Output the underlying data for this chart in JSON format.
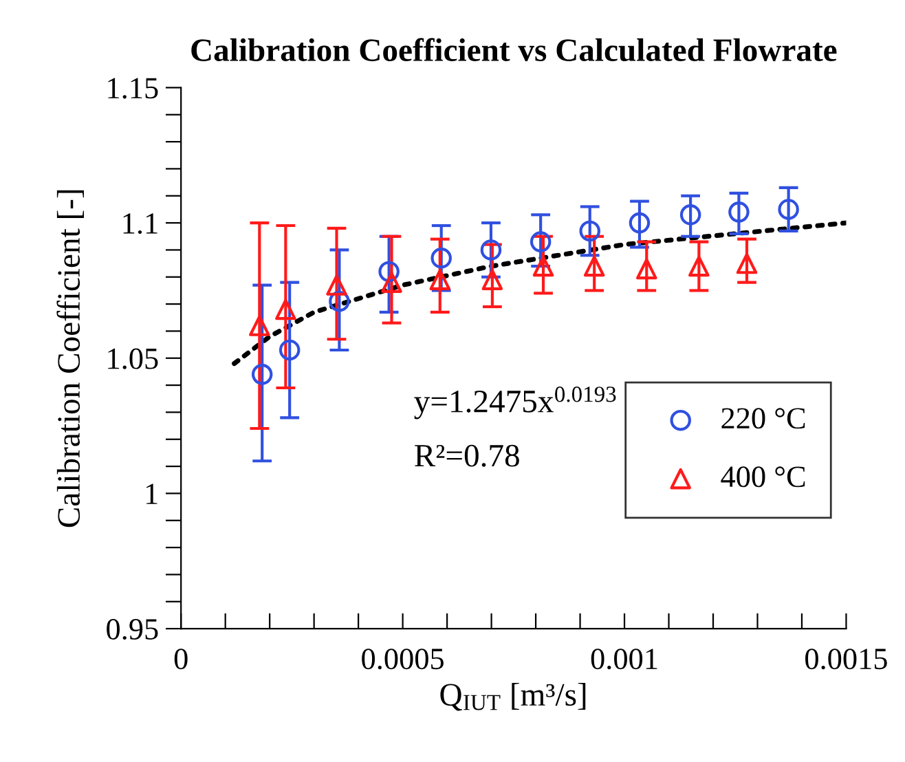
{
  "chart_data": {
    "type": "scatter",
    "title": "Calibration Coefficient vs Calculated Flowrate",
    "xlabel": "Q$_{IUT}$ [m³/s]",
    "ylabel": "Calibration Coefficient [-]",
    "xlim": [
      0,
      0.0015
    ],
    "ylim": [
      0.95,
      1.15
    ],
    "xticks": [
      0,
      {
        "value": 0.0001,
        "label": null
      },
      {
        "value": 0.0002,
        "label": null
      },
      {
        "value": 0.0003,
        "label": null
      },
      {
        "value": 0.0004,
        "label": null
      },
      {
        "value": 0.0005,
        "label": "0.0005"
      },
      {
        "value": 0.0006,
        "label": null
      },
      {
        "value": 0.0007,
        "label": null
      },
      {
        "value": 0.0008,
        "label": null
      },
      {
        "value": 0.0009,
        "label": null
      },
      {
        "value": 0.001,
        "label": "0.001"
      },
      {
        "value": 0.0011,
        "label": null
      },
      {
        "value": 0.0012,
        "label": null
      },
      {
        "value": 0.0013,
        "label": null
      },
      {
        "value": 0.0014,
        "label": null
      },
      {
        "value": 0.0015,
        "label": "0.0015"
      }
    ],
    "yticks": [
      {
        "value": 0.95,
        "label": "0.95"
      },
      {
        "value": 0.96,
        "label": null
      },
      {
        "value": 0.97,
        "label": null
      },
      {
        "value": 0.98,
        "label": null
      },
      {
        "value": 0.99,
        "label": null
      },
      1,
      {
        "value": 1.01,
        "label": null
      },
      {
        "value": 1.02,
        "label": null
      },
      {
        "value": 1.03,
        "label": null
      },
      {
        "value": 1.04,
        "label": null
      },
      1.05,
      {
        "value": 1.06,
        "label": null
      },
      {
        "value": 1.07,
        "label": null
      },
      {
        "value": 1.08,
        "label": null
      },
      {
        "value": 1.09,
        "label": null
      },
      1.1,
      {
        "value": 1.11,
        "label": null
      },
      {
        "value": 1.12,
        "label": null
      },
      {
        "value": 1.13,
        "label": null
      },
      {
        "value": 1.14,
        "label": null
      },
      1.15
    ],
    "grid": false,
    "legend": "right",
    "series": [
      {
        "name": "220 °C",
        "color": "#3050e0",
        "marker": "circle",
        "x": [
          0.000183,
          0.000245,
          0.000357,
          0.000469,
          0.000587,
          0.000699,
          0.000811,
          0.000922,
          0.001034,
          0.001149,
          0.001258,
          0.00137
        ],
        "values": [
          1.044,
          1.053,
          1.071,
          1.082,
          1.087,
          1.09,
          1.093,
          1.097,
          1.1,
          1.103,
          1.104,
          1.105
        ],
        "errors": [
          [
            1.012,
            1.077
          ],
          [
            1.028,
            1.078
          ],
          [
            1.053,
            1.09
          ],
          [
            1.067,
            1.095
          ],
          [
            1.075,
            1.099
          ],
          [
            1.08,
            1.1
          ],
          [
            1.084,
            1.103
          ],
          [
            1.088,
            1.106
          ],
          [
            1.091,
            1.108
          ],
          [
            1.095,
            1.11
          ],
          [
            1.096,
            1.111
          ],
          [
            1.097,
            1.113
          ]
        ]
      },
      {
        "name": "400 °C",
        "color": "#ff1a1a",
        "marker": "triangle",
        "x": [
          0.000177,
          0.000236,
          0.000351,
          0.000475,
          0.000584,
          0.000702,
          0.000817,
          0.000932,
          0.00105,
          0.001168,
          0.001276
        ],
        "values": [
          1.062,
          1.068,
          1.077,
          1.078,
          1.079,
          1.079,
          1.084,
          1.084,
          1.083,
          1.084,
          1.085
        ],
        "errors": [
          [
            1.024,
            1.1
          ],
          [
            1.039,
            1.099
          ],
          [
            1.057,
            1.098
          ],
          [
            1.063,
            1.095
          ],
          [
            1.067,
            1.094
          ],
          [
            1.069,
            1.092
          ],
          [
            1.074,
            1.095
          ],
          [
            1.075,
            1.095
          ],
          [
            1.075,
            1.093
          ],
          [
            1.075,
            1.093
          ],
          [
            1.078,
            1.094
          ]
        ]
      },
      {
        "type": "line",
        "color": "#000000",
        "line_style": "dotted",
        "marker": "none",
        "x": [
          0.00012,
          0.0002,
          0.0003,
          0.0005,
          0.0007,
          0.001,
          0.0015
        ],
        "values": [
          1.048,
          1.058,
          1.067,
          1.077,
          1.084,
          1.092,
          1.1
        ]
      }
    ],
    "annotations": [
      "y=1.2475x$^{0.0193}$",
      "R²=0.78"
    ]
  }
}
